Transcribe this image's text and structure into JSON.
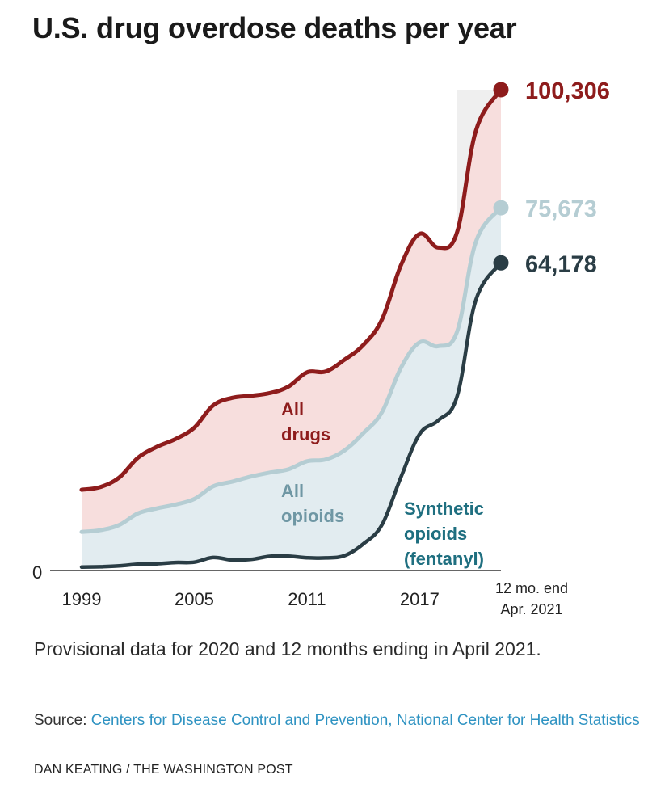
{
  "header": {
    "title": "U.S. drug overdose deaths per year"
  },
  "footer": {
    "note": "Provisional data for 2020 and 12 months ending in April 2021.",
    "source_prefix": "Source: ",
    "source_link": "Centers for Disease Control and Prevention, National Center for Health Statistics",
    "credit": "DAN KEATING / THE WASHINGTON POST"
  },
  "colors": {
    "all_drugs": "#8e1c1c",
    "all_drugs_fill": "#f7dedd",
    "all_opioids": "#b5cdd3",
    "all_opioids_fill": "#e2ecf0",
    "synthetic": "#2a3d45",
    "synthetic_label": "#1f6f80",
    "plot_bg_right": "#efefef",
    "axis_text": "#222222"
  },
  "chart_data": {
    "type": "area",
    "x": [
      1999,
      2000,
      2001,
      2002,
      2003,
      2004,
      2005,
      2006,
      2007,
      2008,
      2009,
      2010,
      2011,
      2012,
      2013,
      2014,
      2015,
      2016,
      2017,
      2018,
      2019,
      2020,
      2021.33
    ],
    "x_tick_values": [
      1999,
      2005,
      2011,
      2017,
      2021.33
    ],
    "x_tick_labels": [
      "1999",
      "2005",
      "2011",
      "2017",
      "12 mo. end\nApr. 2021"
    ],
    "y_tick_labels": [
      "0"
    ],
    "ylim": [
      0,
      100306
    ],
    "series": [
      {
        "name": "All drugs",
        "label_lines": [
          "All",
          "drugs"
        ],
        "end_label": "100,306",
        "values": [
          16849,
          17415,
          19394,
          23518,
          25785,
          27424,
          29813,
          34425,
          36010,
          36450,
          37004,
          38329,
          41340,
          41502,
          43982,
          47055,
          52404,
          63632,
          70237,
          67367,
          70630,
          91799,
          100306
        ]
      },
      {
        "name": "All opioids",
        "label_lines": [
          "All",
          "opioids"
        ],
        "end_label": "75,673",
        "values": [
          8050,
          8407,
          9496,
          11920,
          12940,
          13756,
          14918,
          17545,
          18516,
          19582,
          20422,
          21089,
          22784,
          23166,
          25052,
          28647,
          33091,
          42249,
          47600,
          46802,
          49860,
          68630,
          75673
        ]
      },
      {
        "name": "Synthetic opioids (fentanyl)",
        "label_lines": [
          "Synthetic",
          "opioids",
          "(fentanyl)"
        ],
        "end_label": "64,178",
        "values": [
          730,
          782,
          957,
          1295,
          1400,
          1664,
          1742,
          2707,
          2213,
          2306,
          2946,
          3007,
          2666,
          2628,
          3105,
          5544,
          9580,
          19413,
          28466,
          31335,
          36359,
          56516,
          64178
        ]
      }
    ]
  }
}
